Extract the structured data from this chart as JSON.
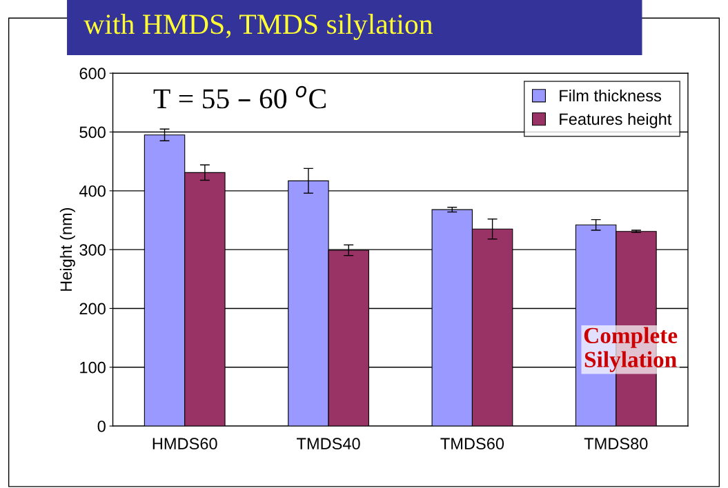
{
  "chart_data": {
    "type": "bar",
    "title": "with HMDS, TMDS silylation",
    "ylabel": "Height (nm)",
    "categories": [
      "HMDS60",
      "TMDS40",
      "TMDS60",
      "TMDS80"
    ],
    "series": [
      {
        "name": "Film thickness",
        "color": "#9999ff",
        "values": [
          495,
          417,
          368,
          342
        ],
        "errors": [
          10,
          21,
          4,
          9
        ]
      },
      {
        "name": "Features height",
        "color": "#993366",
        "values": [
          431,
          299,
          335,
          331
        ],
        "errors": [
          13,
          9,
          17,
          2
        ]
      }
    ],
    "ylim": [
      0,
      600
    ],
    "yticks": [
      0,
      100,
      200,
      300,
      400,
      500,
      600
    ],
    "grid": "y",
    "legend": "top right",
    "annotations": [
      "T = 55 – 60 $^{o}$C",
      "Complete Silylation"
    ]
  }
}
